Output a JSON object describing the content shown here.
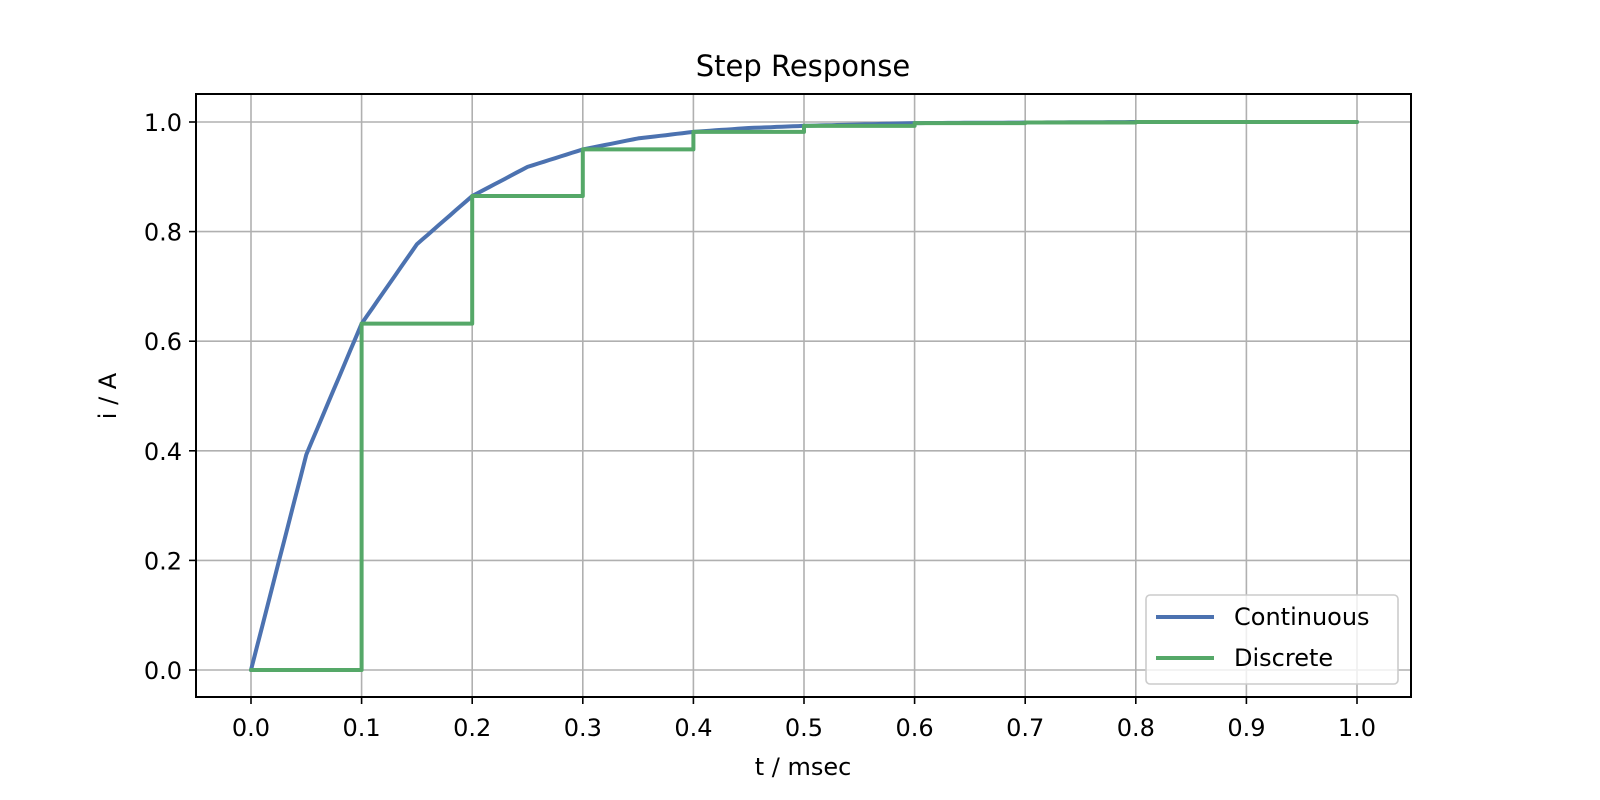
{
  "chart_data": {
    "type": "line",
    "title": "Step Response",
    "xlabel": "t / msec",
    "ylabel": "i / A",
    "xlim": [
      -0.05,
      1.05
    ],
    "ylim": [
      -0.05,
      1.05
    ],
    "xticks": [
      0.0,
      0.1,
      0.2,
      0.3,
      0.4,
      0.5,
      0.6,
      0.7,
      0.8,
      0.9,
      1.0
    ],
    "xtick_labels": [
      "0.0",
      "0.1",
      "0.2",
      "0.3",
      "0.4",
      "0.5",
      "0.6",
      "0.7",
      "0.8",
      "0.9",
      "1.0"
    ],
    "yticks": [
      0.0,
      0.2,
      0.4,
      0.6,
      0.8,
      1.0
    ],
    "ytick_labels": [
      "0.0",
      "0.2",
      "0.4",
      "0.6",
      "0.8",
      "1.0"
    ],
    "grid": true,
    "legend_position": "lower right",
    "series": [
      {
        "name": "Continuous",
        "color": "#4c72b0",
        "style": "line",
        "x": [
          0.0,
          0.05,
          0.1,
          0.15,
          0.2,
          0.25,
          0.3,
          0.35,
          0.4,
          0.45,
          0.5,
          0.6,
          0.7,
          0.8,
          0.9,
          1.0
        ],
        "values": [
          0.0,
          0.393,
          0.632,
          0.777,
          0.865,
          0.918,
          0.95,
          0.97,
          0.982,
          0.989,
          0.993,
          0.998,
          0.999,
          1.0,
          1.0,
          1.0
        ]
      },
      {
        "name": "Discrete",
        "color": "#55a868",
        "style": "step-post",
        "x": [
          0.0,
          0.1,
          0.2,
          0.3,
          0.4,
          0.5,
          0.6,
          0.7,
          0.8,
          0.9,
          1.0
        ],
        "values": [
          0.0,
          0.632,
          0.865,
          0.95,
          0.982,
          0.993,
          0.998,
          0.999,
          1.0,
          1.0,
          1.0
        ]
      }
    ]
  },
  "legend": {
    "items": [
      {
        "label": "Continuous",
        "color": "#4c72b0"
      },
      {
        "label": "Discrete",
        "color": "#55a868"
      }
    ]
  }
}
